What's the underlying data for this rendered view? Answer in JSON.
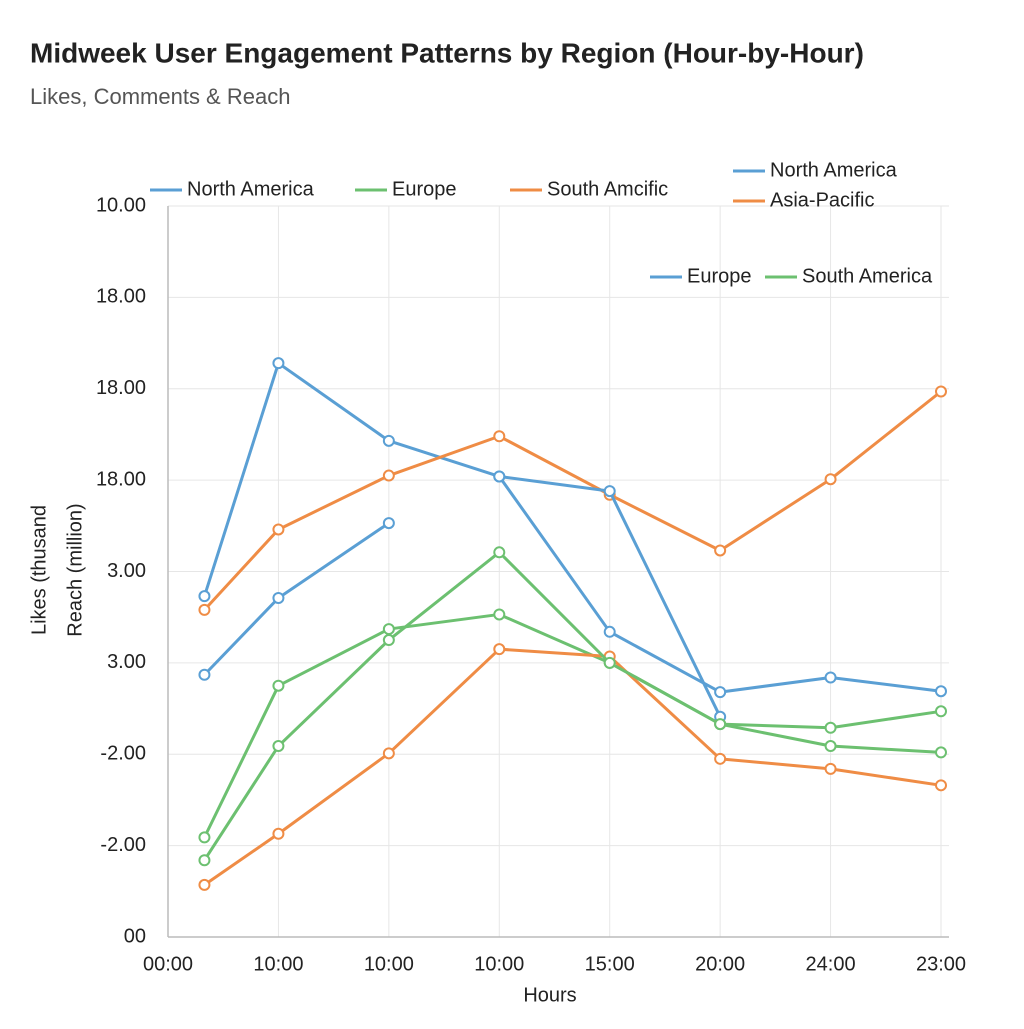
{
  "chart_data": {
    "type": "line",
    "title": "Midweek User Engagement Patterns by Region (Hour-by-Hour)",
    "subtitle": "Likes, Comments & Reach",
    "y_label_1": "Likes (thusand",
    "y_label_2": "Reach (million)",
    "x_label": "Hours",
    "x": [
      0.33,
      1,
      2,
      3,
      4,
      5,
      6,
      7
    ],
    "xlim": [
      0,
      7
    ],
    "xticks": [
      {
        "value": 0,
        "label": "00:00"
      },
      {
        "value": 1,
        "label": "10:00"
      },
      {
        "value": 2,
        "label": "10:00"
      },
      {
        "value": 3,
        "label": "10:00"
      },
      {
        "value": 4,
        "label": "15:00"
      },
      {
        "value": 5,
        "label": "20:00"
      },
      {
        "value": 6,
        "label": "24:00"
      },
      {
        "value": 7,
        "label": "23:00"
      }
    ],
    "ylim": [
      0,
      8
    ],
    "yticks": [
      {
        "value": 0,
        "label": "00"
      },
      {
        "value": 1,
        "label": "-2.00"
      },
      {
        "value": 2,
        "label": "-2.00"
      },
      {
        "value": 3,
        "label": "3.00"
      },
      {
        "value": 4,
        "label": "3.00"
      },
      {
        "value": 5,
        "label": "18.00"
      },
      {
        "value": 6,
        "label": "18.00"
      },
      {
        "value": 7,
        "label": "18.00"
      },
      {
        "value": 8,
        "label": "10.00"
      }
    ],
    "grid": true,
    "series": [
      {
        "name": "North America",
        "color": "#5a9fd4",
        "values": [
          3.73,
          6.28,
          5.43,
          5.04,
          3.34,
          2.68,
          2.84,
          2.69
        ]
      },
      {
        "name": "Europe",
        "color": "#6cc070",
        "values": [
          1.09,
          2.75,
          3.37,
          3.53,
          3.0,
          2.33,
          2.29,
          2.47
        ]
      },
      {
        "name": "South Amcific",
        "color": "#ef8c45",
        "values": [
          3.58,
          4.46,
          5.05,
          5.48,
          4.84,
          4.23,
          5.01,
          5.97
        ]
      },
      {
        "name": "North America",
        "color": "#5a9fd4",
        "values": [
          null,
          null,
          null,
          5.04,
          4.88,
          2.41,
          null,
          null
        ]
      },
      {
        "name": "Asia-Pacific",
        "color": "#ef8c45",
        "values": [
          0.57,
          1.13,
          2.01,
          3.15,
          3.07,
          1.95,
          1.84,
          1.66
        ]
      },
      {
        "name": "Europe",
        "color": "#5a9fd4",
        "values": [
          2.87,
          3.71,
          4.53,
          null,
          null,
          null,
          null,
          null
        ]
      },
      {
        "name": "South America",
        "color": "#6cc070",
        "values": [
          0.84,
          2.09,
          3.25,
          4.21,
          3.0,
          2.33,
          2.09,
          2.02
        ]
      }
    ]
  }
}
